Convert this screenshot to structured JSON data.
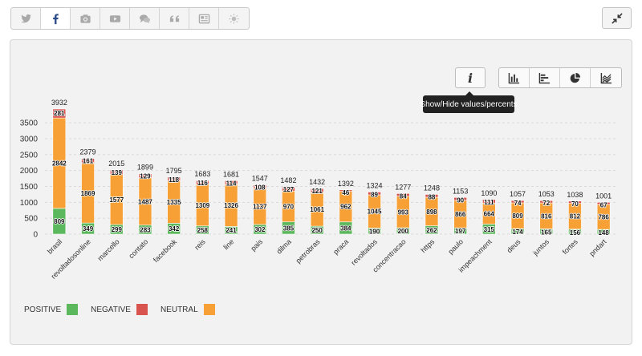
{
  "source_bar": {
    "buttons": [
      {
        "icon": "twitter-icon",
        "active": false
      },
      {
        "icon": "facebook-icon",
        "active": true
      },
      {
        "icon": "camera-icon",
        "active": false
      },
      {
        "icon": "youtube-icon",
        "active": false
      },
      {
        "icon": "comments-icon",
        "active": false
      },
      {
        "icon": "quote-icon",
        "active": false
      },
      {
        "icon": "news-icon",
        "active": false
      },
      {
        "icon": "sun-icon",
        "active": false
      }
    ]
  },
  "collapse_button": {
    "icon": "compress-icon"
  },
  "toolbar": {
    "info_label": "i",
    "tooltip": "Show/Hide values/percents",
    "chart_type_buttons": [
      {
        "icon": "bar-chart-icon"
      },
      {
        "icon": "horizontal-bar-icon"
      },
      {
        "icon": "pie-chart-icon"
      },
      {
        "icon": "area-chart-icon"
      }
    ]
  },
  "colors": {
    "positive": "#5cb85c",
    "negative": "#d9534f",
    "neutral": "#f7a035"
  },
  "legend": {
    "positive": "POSITIVE",
    "negative": "NEGATIVE",
    "neutral": "NEUTRAL"
  },
  "chart_data": {
    "type": "bar",
    "stacked": true,
    "categories": [
      "brasil",
      "revoltadosonline",
      "marcello",
      "contato",
      "facebook",
      "reis",
      "line",
      "pais",
      "dilma",
      "petrobras",
      "praca",
      "revoltados",
      "concentracao",
      "https",
      "paulo",
      "impeachment",
      "deus",
      "juntos",
      "fortes",
      "pndart"
    ],
    "series": [
      {
        "name": "POSITIVE",
        "values": [
          809,
          349,
          299,
          283,
          342,
          258,
          241,
          302,
          385,
          250,
          384,
          190,
          200,
          262,
          197,
          315,
          174,
          165,
          156,
          148
        ]
      },
      {
        "name": "NEUTRAL",
        "values": [
          2842,
          1869,
          1577,
          1487,
          1335,
          1309,
          1326,
          1137,
          970,
          1061,
          962,
          1045,
          993,
          898,
          866,
          664,
          809,
          816,
          812,
          786
        ]
      },
      {
        "name": "NEGATIVE",
        "values": [
          281,
          161,
          139,
          129,
          118,
          116,
          114,
          108,
          127,
          121,
          46,
          89,
          84,
          88,
          90,
          111,
          74,
          72,
          70,
          67
        ]
      }
    ],
    "totals": [
      3932,
      2379,
      2015,
      1899,
      1795,
      1683,
      1681,
      1547,
      1482,
      1432,
      1392,
      1324,
      1277,
      1248,
      1153,
      1090,
      1057,
      1053,
      1038,
      1001
    ],
    "y_ticks": [
      0,
      500,
      1000,
      1500,
      2000,
      2500,
      3000,
      3500
    ],
    "ylim": [
      0,
      4000
    ],
    "grid": true,
    "legend_position": "bottom-left"
  }
}
